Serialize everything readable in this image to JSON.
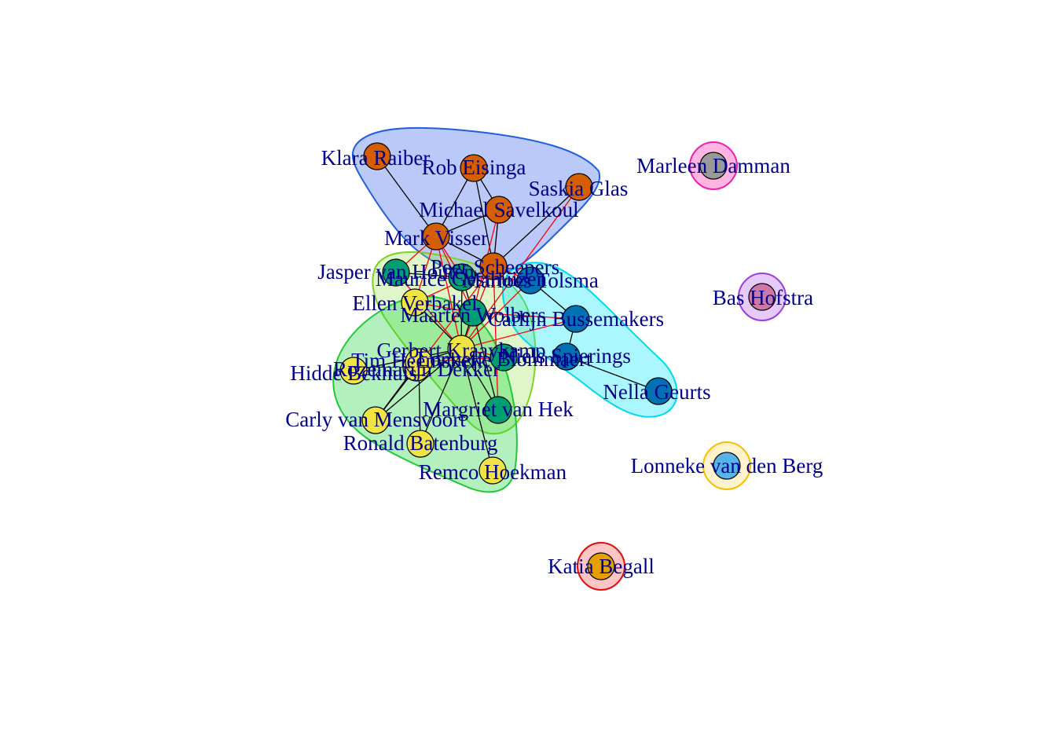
{
  "chart_data": {
    "type": "network",
    "groups": [
      {
        "id": "g1",
        "fill": "#2f5be8",
        "stroke": "#1f5fe0",
        "members": [
          "Klara Raiber",
          "Rob Eisinga",
          "Saskia Glas",
          "Michael Savelkoul",
          "Mark Visser",
          "Peer Scheepers"
        ]
      },
      {
        "id": "g2",
        "fill": "#9be45a",
        "stroke": "#7ed321",
        "members": [
          "Jasper van Houten",
          "Maurice Gesthuizen",
          "Ellen Verbakel",
          "Maarten Wolbers",
          "Gerbert Kraaykamp",
          "Margriet van Hek"
        ]
      },
      {
        "id": "g3",
        "fill": "#00e6ff",
        "stroke": "#00d8f0",
        "members": [
          "Marloes Tolsma",
          "Carlijn Bussemakers",
          "Niels Spierings",
          "Nella Geurts",
          "Lonneke Blommaert"
        ]
      },
      {
        "id": "g4",
        "fill": "#16d33a",
        "stroke": "#21c93a",
        "members": [
          "Hidde Bekhuis",
          "Rozemarijn Dekker",
          "Tim Heemskerk",
          "Carly van Mensvoort",
          "Ronald Batenburg",
          "Remco Hoekman"
        ]
      },
      {
        "id": "g5",
        "fill": "#ff1aa6",
        "stroke": "#ee22b0",
        "members": [
          "Marleen Damman"
        ]
      },
      {
        "id": "g6",
        "fill": "#b15ef0",
        "stroke": "#9b3fe0",
        "members": [
          "Bas Hofstra"
        ]
      },
      {
        "id": "g7",
        "fill": "#ffd966",
        "stroke": "#f5c000",
        "members": [
          "Lonneke van den Berg"
        ]
      },
      {
        "id": "g8",
        "fill": "#ff4d4d",
        "stroke": "#e01010",
        "members": [
          "Katia Begall"
        ]
      }
    ],
    "nodes": [
      {
        "id": "Klara Raiber",
        "label": "Klara Raiber",
        "color": "#d55e00"
      },
      {
        "id": "Rob Eisinga",
        "label": "Rob Eisinga",
        "color": "#d55e00"
      },
      {
        "id": "Saskia Glas",
        "label": "Saskia Glas",
        "color": "#d55e00"
      },
      {
        "id": "Michael Savelkoul",
        "label": "Michael Savelkoul",
        "color": "#d55e00"
      },
      {
        "id": "Mark Visser",
        "label": "Mark Visser",
        "color": "#d55e00"
      },
      {
        "id": "Peer Scheepers",
        "label": "Peer Scheepers",
        "color": "#d55e00"
      },
      {
        "id": "Jasper van Houten",
        "label": "Jasper van Houten",
        "color": "#009e73"
      },
      {
        "id": "Maurice Gesthuizen",
        "label": "Maurice Gesthuizen",
        "color": "#009e73"
      },
      {
        "id": "Ellen Verbakel",
        "label": "Ellen Verbakel",
        "color": "#f0e442"
      },
      {
        "id": "Maarten Wolbers",
        "label": "Maarten Wolbers",
        "color": "#009e73"
      },
      {
        "id": "Gerbert Kraaykamp",
        "label": "Gerbert Kraaykamp",
        "color": "#f0e442"
      },
      {
        "id": "Margriet van Hek",
        "label": "Margriet van Hek",
        "color": "#009e73"
      },
      {
        "id": "Marloes Tolsma",
        "label": "Marloes Tolsma",
        "color": "#0072b2"
      },
      {
        "id": "Carlijn Bussemakers",
        "label": "Carlijn Bussemakers",
        "color": "#0072b2"
      },
      {
        "id": "Niels Spierings",
        "label": "Niels Spierings",
        "color": "#0072b2"
      },
      {
        "id": "Nella Geurts",
        "label": "Nella Geurts",
        "color": "#0072b2"
      },
      {
        "id": "Lonneke Blommaert",
        "label": "Lonneke Blommaert",
        "color": "#009e73"
      },
      {
        "id": "Hidde Bekhuis",
        "label": "Hidde Bekhuis",
        "color": "#f0e442"
      },
      {
        "id": "Rozemarijn Dekker",
        "label": "Rozemarijn Dekker",
        "color": "#f0e442"
      },
      {
        "id": "Tim Heemskerk",
        "label": "Tim Heemskerk",
        "color": "#f0e442"
      },
      {
        "id": "Carly van Mensvoort",
        "label": "Carly van Mensvoort",
        "color": "#f0e442"
      },
      {
        "id": "Ronald Batenburg",
        "label": "Ronald Batenburg",
        "color": "#f0e442"
      },
      {
        "id": "Remco Hoekman",
        "label": "Remco Hoekman",
        "color": "#f0e442"
      },
      {
        "id": "Marleen Damman",
        "label": "Marleen Damman",
        "color": "#999999"
      },
      {
        "id": "Bas Hofstra",
        "label": "Bas Hofstra",
        "color": "#cc79a7"
      },
      {
        "id": "Lonneke van den Berg",
        "label": "Lonneke van den Berg",
        "color": "#56b4e9"
      },
      {
        "id": "Katia Begall",
        "label": "Katia Begall",
        "color": "#e69f00"
      }
    ],
    "edges_within": [
      [
        "Klara Raiber",
        "Mark Visser"
      ],
      [
        "Rob Eisinga",
        "Michael Savelkoul"
      ],
      [
        "Rob Eisinga",
        "Mark Visser"
      ],
      [
        "Rob Eisinga",
        "Peer Scheepers"
      ],
      [
        "Michael Savelkoul",
        "Mark Visser"
      ],
      [
        "Michael Savelkoul",
        "Peer Scheepers"
      ],
      [
        "Mark Visser",
        "Peer Scheepers"
      ],
      [
        "Saskia Glas",
        "Peer Scheepers"
      ],
      [
        "Jasper van Houten",
        "Maurice Gesthuizen"
      ],
      [
        "Maurice Gesthuizen",
        "Maarten Wolbers"
      ],
      [
        "Maurice Gesthuizen",
        "Gerbert Kraaykamp"
      ],
      [
        "Maarten Wolbers",
        "Gerbert Kraaykamp"
      ],
      [
        "Gerbert Kraaykamp",
        "Margriet van Hek"
      ],
      [
        "Maarten Wolbers",
        "Margriet van Hek"
      ],
      [
        "Ellen Verbakel",
        "Gerbert Kraaykamp"
      ],
      [
        "Marloes Tolsma",
        "Carlijn Bussemakers"
      ],
      [
        "Carlijn Bussemakers",
        "Niels Spierings"
      ],
      [
        "Niels Spierings",
        "Nella Geurts"
      ],
      [
        "Gerbert Kraaykamp",
        "Hidde Bekhuis"
      ],
      [
        "Gerbert Kraaykamp",
        "Carly van Mensvoort"
      ],
      [
        "Gerbert Kraaykamp",
        "Ronald Batenburg"
      ],
      [
        "Gerbert Kraaykamp",
        "Remco Hoekman"
      ],
      [
        "Gerbert Kraaykamp",
        "Tim Heemskerk"
      ],
      [
        "Tim Heemskerk",
        "Carly van Mensvoort"
      ],
      [
        "Rozemarijn Dekker",
        "Carly van Mensvoort"
      ],
      [
        "Tim Heemskerk",
        "Ronald Batenburg"
      ]
    ],
    "edges_between": [
      [
        "Mark Visser",
        "Gerbert Kraaykamp"
      ],
      [
        "Mark Visser",
        "Maurice Gesthuizen"
      ],
      [
        "Mark Visser",
        "Ellen Verbakel"
      ],
      [
        "Mark Visser",
        "Maarten Wolbers"
      ],
      [
        "Mark Visser",
        "Jasper van Houten"
      ],
      [
        "Michael Savelkoul",
        "Maarten Wolbers"
      ],
      [
        "Peer Scheepers",
        "Gerbert Kraaykamp"
      ],
      [
        "Peer Scheepers",
        "Marloes Tolsma"
      ],
      [
        "Peer Scheepers",
        "Ellen Verbakel"
      ],
      [
        "Peer Scheepers",
        "Margriet van Hek"
      ],
      [
        "Marloes Tolsma",
        "Gerbert Kraaykamp"
      ],
      [
        "Marloes Tolsma",
        "Maurice Gesthuizen"
      ],
      [
        "Carlijn Bussemakers",
        "Gerbert Kraaykamp"
      ],
      [
        "Carlijn Bussemakers",
        "Maarten Wolbers"
      ],
      [
        "Lonneke Blommaert",
        "Gerbert Kraaykamp"
      ],
      [
        "Lonneke Blommaert",
        "Tim Heemskerk"
      ],
      [
        "Ellen Verbakel",
        "Maarten Wolbers"
      ],
      [
        "Jasper van Houten",
        "Gerbert Kraaykamp"
      ],
      [
        "Rozemarijn Dekker",
        "Peer Scheepers"
      ],
      [
        "Saskia Glas",
        "Gerbert Kraaykamp"
      ]
    ]
  }
}
